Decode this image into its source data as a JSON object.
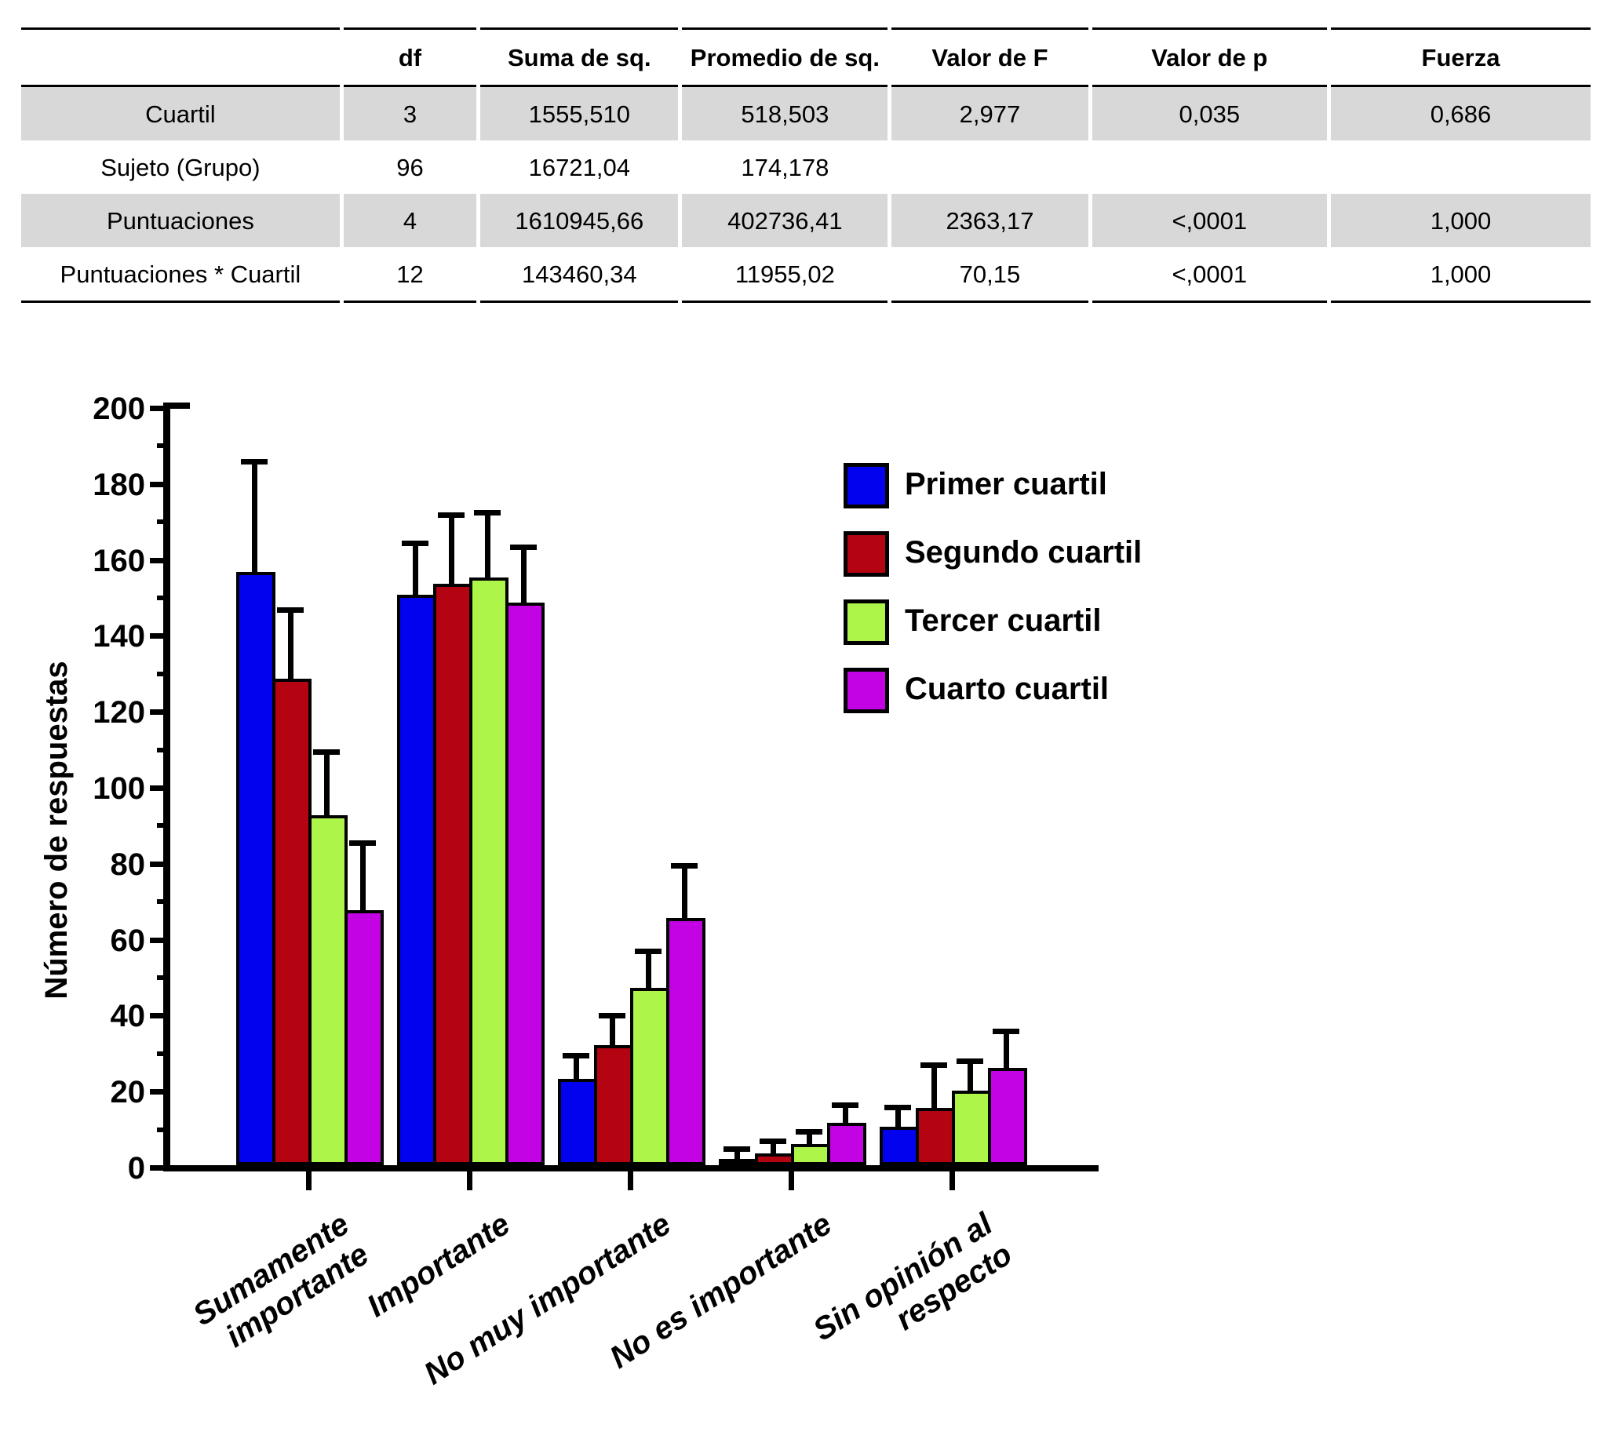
{
  "table": {
    "headers": [
      "",
      "df",
      "Suma de sq.",
      "Promedio de sq.",
      "Valor de F",
      "Valor de p",
      "Fuerza"
    ],
    "rows": [
      [
        "Cuartil",
        "3",
        "1555,510",
        "518,503",
        "2,977",
        "0,035",
        "0,686"
      ],
      [
        "Sujeto (Grupo)",
        "96",
        "16721,04",
        "174,178",
        "",
        "",
        ""
      ],
      [
        "Puntuaciones",
        "4",
        "1610945,66",
        "402736,41",
        "2363,17",
        "<,0001",
        "1,000"
      ],
      [
        "Puntuaciones * Cuartil",
        "12",
        "143460,34",
        "11955,02",
        "70,15",
        "<,0001",
        "1,000"
      ]
    ],
    "shaded_rows": [
      0,
      2
    ],
    "shade_color": "#D8D8D8"
  },
  "chart_data": {
    "type": "bar",
    "title": "",
    "xlabel": "",
    "ylabel": "Número de respuestas",
    "ylim": [
      0,
      200
    ],
    "ytick_step": 20,
    "yticks": [
      0,
      20,
      40,
      60,
      80,
      100,
      120,
      140,
      160,
      180,
      200
    ],
    "grid": false,
    "legend_position": "upper right",
    "categories": [
      "Sumamente\nimportante",
      "Importante",
      "No muy importante",
      "No es importante",
      "Sin opinión al respecto"
    ],
    "series": [
      {
        "name": "Primer cuartil",
        "color": "#0202EE",
        "values": [
          157,
          151,
          23.5,
          2.5,
          11
        ],
        "errors_plus": [
          29,
          13.5,
          6,
          2.5,
          5
        ]
      },
      {
        "name": "Segundo cuartil",
        "color": "#B40411",
        "values": [
          129,
          154,
          32.5,
          4,
          16
        ],
        "errors_plus": [
          18,
          18,
          7.5,
          3,
          11
        ]
      },
      {
        "name": "Tercer cuartil",
        "color": "#ADF548",
        "values": [
          93,
          155.5,
          47.5,
          6.5,
          20.5
        ],
        "errors_plus": [
          16.5,
          17,
          9.5,
          3,
          7.5
        ]
      },
      {
        "name": "Cuarto cuartil",
        "color": "#C303E3",
        "values": [
          68,
          149,
          66,
          12,
          26.5
        ],
        "errors_plus": [
          17.5,
          14.5,
          13.5,
          4.5,
          9.5
        ]
      }
    ]
  }
}
